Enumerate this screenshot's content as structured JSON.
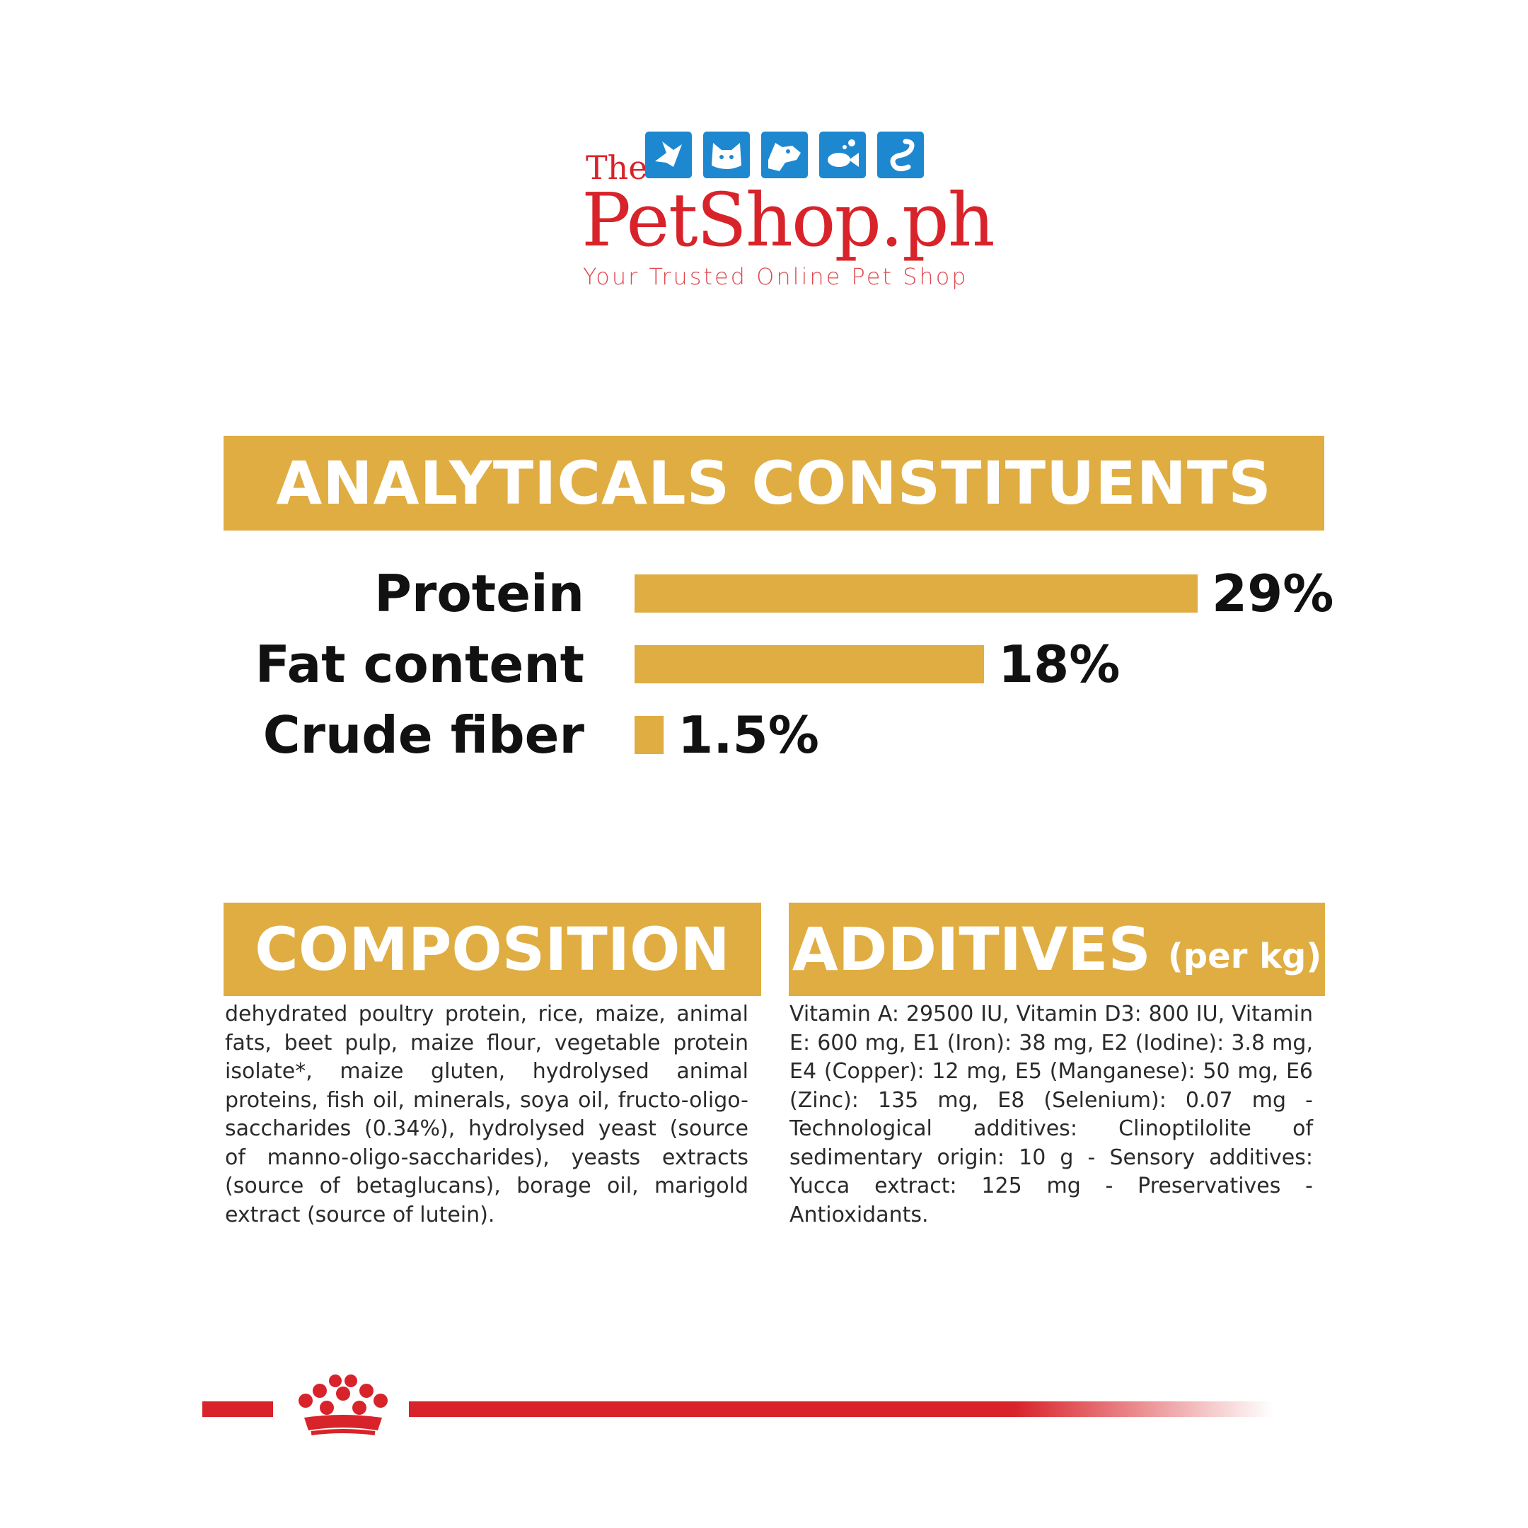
{
  "logo": {
    "prefix": "The",
    "name": "PetShop.ph",
    "tagline": "Your Trusted Online Pet Shop",
    "icons": [
      "bird-icon",
      "cat-icon",
      "dog-icon",
      "fish-icon",
      "snake-icon"
    ],
    "brand_color": "#d8232a",
    "icon_color": "#1d88d0"
  },
  "analytical": {
    "title": "ANALYTICALS CONSTITUENTS"
  },
  "chart_data": {
    "type": "bar",
    "orientation": "horizontal",
    "categories": [
      "Protein",
      "Fat content",
      "Crude fiber"
    ],
    "values": [
      29,
      18,
      1.5
    ],
    "value_labels": [
      "29%",
      "18%",
      "1.5%"
    ],
    "unit": "%",
    "title": "ANALYTICALS CONSTITUENTS",
    "xlabel": "",
    "ylabel": "",
    "bar_color": "#e0ad42",
    "grid": false,
    "legend": "none"
  },
  "composition": {
    "title": "COMPOSITION",
    "text": "dehydrated poultry protein, rice, maize, animal fats, beet pulp, maize flour, vegetable protein isolate*, maize gluten, hydrolysed animal proteins, fish oil, minerals, soya oil, fructo-oligo- saccharides (0.34%), hydrolysed yeast (source of manno-oligo-saccharides), yeasts extracts (source of betaglucans), borage oil, marigold extract (source of lutein)."
  },
  "additives": {
    "title": "ADDITIVES",
    "subtitle": "(per kg)",
    "text": "Vitamin A: 29500 IU, Vitamin D3: 800 IU, Vitamin E: 600 mg, E1 (Iron): 38 mg, E2 (Iodine): 3.8 mg, E4 (Copper): 12 mg, E5 (Manganese): 50 mg, E6 (Zinc): 135 mg, E8 (Selenium): 0.07 mg - Technological additives: Clinoptilolite of sedimentary origin: 10 g - Sensory additives: Yucca extract: 125 mg - Preservatives - Antioxidants."
  },
  "footer": {
    "brand_mark": "crown-icon",
    "line_color": "#d8232a"
  }
}
